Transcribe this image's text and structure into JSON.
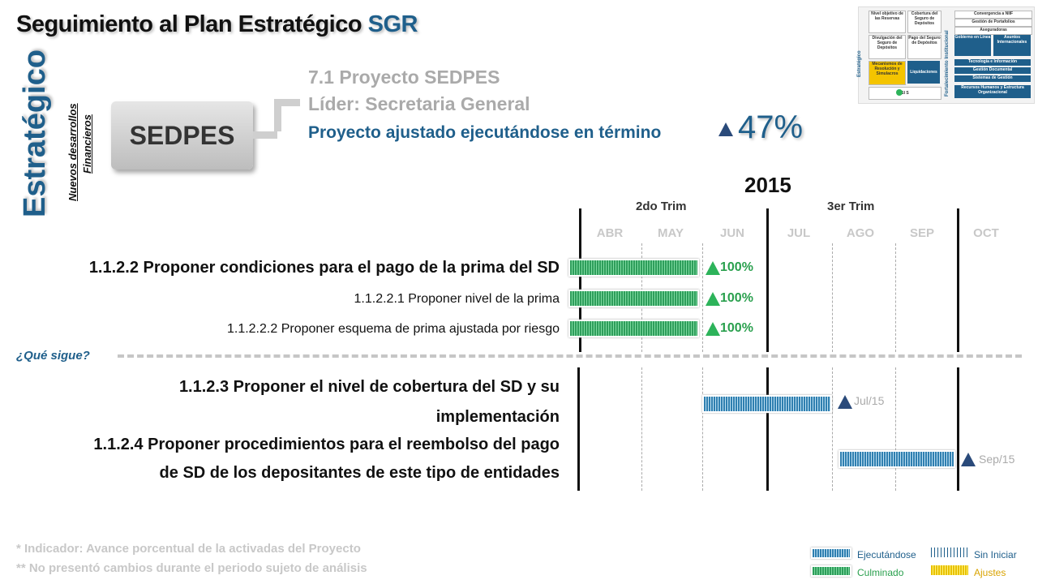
{
  "title": {
    "main": "Seguimiento al Plan Estratégico",
    "accent": "SGR"
  },
  "side": {
    "strategic": "Estratégico",
    "line1": "Nuevos desarrollos",
    "line2": "Financieros"
  },
  "box_label": "SEDPES",
  "project": {
    "name": "7.1 Proyecto SEDPES",
    "leader": "Líder: Secretaria General",
    "status": "Proyecto ajustado ejecutándose en término",
    "percent": "47%"
  },
  "timeline": {
    "year": "2015",
    "trims": [
      "2do Trim",
      "3er Trim"
    ],
    "months": [
      "ABR",
      "MAY",
      "JUN",
      "JUL",
      "AGO",
      "SEP",
      "OCT"
    ]
  },
  "tasks": [
    {
      "label": "1.1.2.2 Proponer condiciones para el pago de la prima del SD",
      "status": "100%"
    },
    {
      "label": "1.1.2.2.1 Proponer nivel de la prima",
      "status": "100%"
    },
    {
      "label": "1.1.2.2.2 Proponer esquema de prima ajustada por riesgo",
      "status": "100%"
    }
  ],
  "next_label": "¿Qué sigue?",
  "next_tasks": [
    {
      "line1": "1.1.2.3 Proponer el nivel de cobertura del SD y su",
      "line2": "implementación",
      "due": "Jul/15"
    },
    {
      "line1": "1.1.2.4 Proponer procedimientos para el reembolso del pago",
      "line2": "de SD de los depositantes de este tipo de entidades",
      "due": "Sep/15"
    }
  ],
  "footnotes": [
    "* Indicador: Avance porcentual de la activadas del Proyecto",
    "** No presentó cambios durante el periodo sujeto de análisis"
  ],
  "legend": {
    "executing": "Ejecutándose",
    "not_started": "Sin Iniciar",
    "done": "Culminado",
    "adjust": "Ajustes"
  },
  "mini_map": {
    "side_left": "Estratégico",
    "side_right": "Fortalecimiento Institucional",
    "cells": [
      "Nivel objetivo de las Reservas",
      "Cobertura del Seguro de Depósitos",
      "Divulgación del Seguro de Depósitos",
      "Pago del Seguro de Depósitos",
      "Mecanismos de Resolución y Simulacros",
      "Liquidaciones"
    ],
    "right_cells": [
      "Convergencia a NIIF",
      "Gestión de Portafolios",
      "Aseguradoras",
      "Gobierno en Línea",
      "Asuntos Internacionales",
      "Tecnología e Información",
      "Gestión Documental",
      "Sistemas de Gestión",
      "Recursos Humanos y Estructura Organizacional"
    ],
    "bottom": "SI   S"
  },
  "colors": {
    "accent": "#1f5f8b",
    "green": "#2db35a",
    "navy": "#2a4a7a"
  }
}
